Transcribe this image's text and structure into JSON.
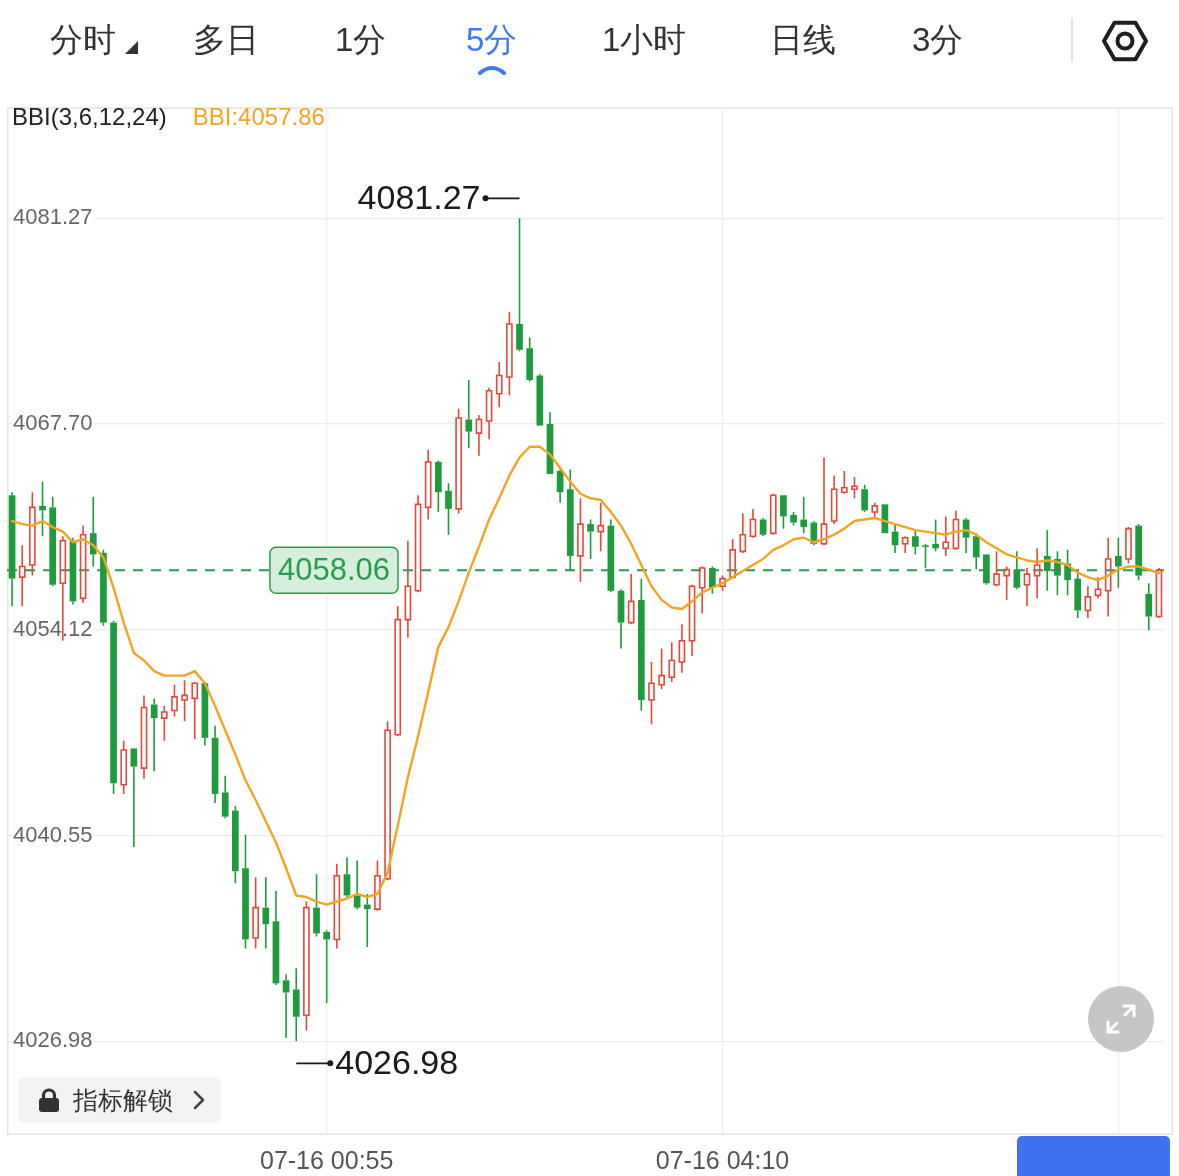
{
  "chart_data": {
    "type": "candlestick",
    "legend_title": "BBI(3,6,12,24)",
    "categories": [
      null,
      null,
      null,
      null,
      null,
      null,
      null,
      null,
      null,
      null,
      null,
      null,
      null,
      null,
      null,
      null,
      null,
      null,
      null,
      null,
      null,
      null,
      null,
      null,
      null,
      null,
      null,
      null,
      null,
      null,
      null,
      "07-16 00:55",
      null,
      null,
      null,
      null,
      null,
      null,
      null,
      null,
      null,
      null,
      null,
      null,
      null,
      null,
      null,
      null,
      null,
      null,
      null,
      null,
      null,
      null,
      null,
      null,
      null,
      null,
      null,
      null,
      null,
      null,
      null,
      null,
      null,
      null,
      null,
      null,
      null,
      null,
      "07-16 04:10",
      null,
      null,
      null,
      null,
      null,
      null,
      null,
      null,
      null,
      null,
      null,
      null,
      null,
      null,
      null,
      null,
      null,
      null,
      null,
      null,
      null,
      null,
      null,
      null,
      null,
      null,
      null,
      null,
      null,
      null,
      null,
      null,
      null,
      null,
      null,
      null,
      null,
      null,
      null,
      null,
      null,
      null,
      null
    ],
    "ohlc": [
      [
        4063.0,
        4063.2,
        4055.7,
        4057.5
      ],
      [
        4057.6,
        4059.7,
        4055.7,
        4058.3
      ],
      [
        4058.4,
        4063.2,
        4057.7,
        4062.2
      ],
      [
        4062.3,
        4063.9,
        4060.3,
        4062.0
      ],
      [
        4062.2,
        4062.9,
        4057.0,
        4057.1
      ],
      [
        4057.2,
        4060.3,
        4053.4,
        4060.0
      ],
      [
        4060.0,
        4060.2,
        4055.8,
        4056.0
      ],
      [
        4056.2,
        4061.0,
        4055.9,
        4060.4
      ],
      [
        4060.5,
        4062.9,
        4058.3,
        4059.1
      ],
      [
        4059.2,
        4059.4,
        4054.4,
        4054.6
      ],
      [
        4054.6,
        4054.7,
        4043.3,
        4044.0
      ],
      [
        4043.9,
        4046.8,
        4043.3,
        4046.2
      ],
      [
        4046.3,
        4046.3,
        4039.8,
        4045.1
      ],
      [
        4045.0,
        4049.8,
        4044.3,
        4049.0
      ],
      [
        4049.2,
        4049.6,
        4044.8,
        4048.3
      ],
      [
        4048.3,
        4049.1,
        4046.8,
        4048.7
      ],
      [
        4048.8,
        4050.5,
        4048.4,
        4049.7
      ],
      [
        4049.5,
        4050.8,
        4048.1,
        4049.8
      ],
      [
        4049.6,
        4050.7,
        4046.9,
        4050.6
      ],
      [
        4050.6,
        4050.7,
        4046.5,
        4047.0
      ],
      [
        4047.0,
        4047.8,
        4042.7,
        4043.3
      ],
      [
        4043.4,
        4044.5,
        4041.7,
        4041.8
      ],
      [
        4042.2,
        4042.5,
        4037.4,
        4038.2
      ],
      [
        4038.4,
        4040.6,
        4033.1,
        4033.7
      ],
      [
        4033.8,
        4037.8,
        4033.1,
        4035.8
      ],
      [
        4035.8,
        4037.8,
        4033.1,
        4034.7
      ],
      [
        4034.9,
        4036.9,
        4030.7,
        4030.8
      ],
      [
        4031.0,
        4031.4,
        4027.2,
        4030.2
      ],
      [
        4030.4,
        4031.8,
        4026.98,
        4028.6
      ],
      [
        4028.7,
        4036.2,
        4027.7,
        4035.8
      ],
      [
        4035.8,
        4038.0,
        4033.9,
        4034.1
      ],
      [
        4034.2,
        4034.3,
        4029.5,
        4033.7
      ],
      [
        4033.7,
        4038.7,
        4033.1,
        4037.9
      ],
      [
        4038.0,
        4039.1,
        4036.5,
        4036.6
      ],
      [
        4036.6,
        4038.9,
        4035.7,
        4035.8
      ],
      [
        4036.0,
        4036.7,
        4033.2,
        4035.7
      ],
      [
        4035.7,
        4038.9,
        4035.6,
        4037.9
      ],
      [
        4037.7,
        4048.1,
        4037.6,
        4047.5
      ],
      [
        4047.2,
        4055.7,
        4047.1,
        4054.8
      ],
      [
        4054.8,
        4060.0,
        4053.6,
        4057.0
      ],
      [
        4056.7,
        4063.0,
        4056.6,
        4062.4
      ],
      [
        4062.2,
        4066.0,
        4061.4,
        4065.2
      ],
      [
        4065.2,
        4065.3,
        4061.9,
        4063.2
      ],
      [
        4063.3,
        4063.8,
        4060.4,
        4062.1
      ],
      [
        4062.1,
        4068.7,
        4061.8,
        4068.1
      ],
      [
        4068.0,
        4070.6,
        4066.1,
        4067.2
      ],
      [
        4067.1,
        4068.3,
        4065.6,
        4068.0
      ],
      [
        4067.9,
        4070.1,
        4066.7,
        4069.9
      ],
      [
        4069.7,
        4071.8,
        4068.8,
        4070.9
      ],
      [
        4070.8,
        4075.1,
        4069.6,
        4074.3
      ],
      [
        4074.3,
        4081.27,
        4072.5,
        4072.6
      ],
      [
        4072.7,
        4073.4,
        4070.5,
        4070.6
      ],
      [
        4070.9,
        4071.0,
        4067.6,
        4067.6
      ],
      [
        4067.7,
        4068.5,
        4064.4,
        4064.4
      ],
      [
        4064.6,
        4064.7,
        4062.5,
        4063.2
      ],
      [
        4063.4,
        4064.7,
        4058.0,
        4059.0
      ],
      [
        4059.0,
        4062.8,
        4057.3,
        4061.1
      ],
      [
        4061.1,
        4061.4,
        4058.8,
        4060.6
      ],
      [
        4060.6,
        4062.5,
        4059.3,
        4061.0
      ],
      [
        4061.0,
        4061.4,
        4056.6,
        4056.7
      ],
      [
        4056.7,
        4056.8,
        4052.9,
        4054.6
      ],
      [
        4054.6,
        4057.8,
        4054.5,
        4056.0
      ],
      [
        4056.1,
        4057.5,
        4048.8,
        4049.5
      ],
      [
        4049.5,
        4052.0,
        4047.9,
        4050.6
      ],
      [
        4050.5,
        4052.9,
        4050.2,
        4051.1
      ],
      [
        4051.0,
        4053.3,
        4050.7,
        4052.1
      ],
      [
        4052.0,
        4054.5,
        4051.3,
        4053.4
      ],
      [
        4053.4,
        4057.1,
        4052.4,
        4057.0
      ],
      [
        4056.9,
        4058.3,
        4055.2,
        4058.2
      ],
      [
        4058.2,
        4058.3,
        4056.5,
        4056.9
      ],
      [
        4057.0,
        4057.7,
        4056.7,
        4057.5
      ],
      [
        4057.6,
        4060.1,
        4057.5,
        4059.4
      ],
      [
        4059.3,
        4061.8,
        4059.2,
        4060.4
      ],
      [
        4060.3,
        4062.1,
        4060.2,
        4061.4
      ],
      [
        4061.4,
        4061.5,
        4060.3,
        4060.4
      ],
      [
        4060.5,
        4063.1,
        4060.4,
        4063.0
      ],
      [
        4063.0,
        4063.0,
        4060.8,
        4061.6
      ],
      [
        4061.7,
        4061.9,
        4061.0,
        4061.2
      ],
      [
        4061.4,
        4062.9,
        4060.5,
        4060.9
      ],
      [
        4061.2,
        4061.3,
        4059.7,
        4059.8
      ],
      [
        4059.8,
        4065.5,
        4059.7,
        4061.1
      ],
      [
        4061.3,
        4064.3,
        4061.1,
        4063.4
      ],
      [
        4063.2,
        4064.6,
        4063.1,
        4063.5
      ],
      [
        4063.4,
        4064.2,
        4062.8,
        4063.6
      ],
      [
        4063.4,
        4063.7,
        4061.9,
        4062.0
      ],
      [
        4061.9,
        4062.5,
        4061.5,
        4062.3
      ],
      [
        4062.4,
        4062.4,
        4060.5,
        4060.5
      ],
      [
        4060.6,
        4061.1,
        4059.2,
        4059.7
      ],
      [
        4059.8,
        4060.3,
        4059.2,
        4060.2
      ],
      [
        4060.3,
        4060.7,
        4059.1,
        4059.6
      ],
      [
        4059.7,
        4059.8,
        4058.2,
        4059.6
      ],
      [
        4059.8,
        4061.4,
        4059.3,
        4059.5
      ],
      [
        4059.5,
        4061.6,
        4059.0,
        4059.9
      ],
      [
        4059.5,
        4062.0,
        4059.4,
        4061.4
      ],
      [
        4061.4,
        4061.5,
        4059.2,
        4060.2
      ],
      [
        4060.3,
        4060.5,
        4058.1,
        4058.9
      ],
      [
        4059.1,
        4059.1,
        4057.1,
        4057.2
      ],
      [
        4057.1,
        4059.3,
        4057.0,
        4057.8
      ],
      [
        4057.7,
        4058.3,
        4056.1,
        4058.1
      ],
      [
        4058.1,
        4059.3,
        4056.8,
        4056.9
      ],
      [
        4057.1,
        4058.2,
        4055.7,
        4057.8
      ],
      [
        4057.7,
        4059.5,
        4056.2,
        4058.4
      ],
      [
        4059.0,
        4060.7,
        4056.7,
        4058.0
      ],
      [
        4058.8,
        4059.3,
        4056.4,
        4057.7
      ],
      [
        4058.5,
        4059.4,
        4056.4,
        4057.4
      ],
      [
        4057.5,
        4058.0,
        4054.9,
        4055.4
      ],
      [
        4055.4,
        4057.0,
        4054.9,
        4056.3
      ],
      [
        4056.4,
        4057.6,
        4056.2,
        4056.8
      ],
      [
        4056.7,
        4060.2,
        4055.0,
        4058.8
      ],
      [
        4059.0,
        4060.2,
        4056.9,
        4058.3
      ],
      [
        4058.8,
        4060.9,
        4058.5,
        4060.8
      ],
      [
        4061.0,
        4061.1,
        4057.4,
        4057.7
      ],
      [
        4056.5,
        4057.2,
        4054.1,
        4055.0
      ],
      [
        4055.0,
        4058.2,
        4054.9,
        4058.06
      ]
    ],
    "colors": [
      "#1e9b3c",
      "#e8483b",
      "#e8483b",
      "#1e9b3c",
      "#1e9b3c",
      "#e8483b",
      "#1e9b3c",
      "#e8483b",
      "#1e9b3c",
      "#1e9b3c",
      "#1e9b3c",
      "#e8483b",
      "#1e9b3c",
      "#e8483b",
      "#1e9b3c",
      "#e8483b",
      "#e8483b",
      "#e8483b",
      "#e8483b",
      "#1e9b3c",
      "#1e9b3c",
      "#1e9b3c",
      "#1e9b3c",
      "#1e9b3c",
      "#e8483b",
      "#1e9b3c",
      "#1e9b3c",
      "#1e9b3c",
      "#1e9b3c",
      "#e8483b",
      "#1e9b3c",
      "#1e9b3c",
      "#e8483b",
      "#1e9b3c",
      "#1e9b3c",
      "#1e9b3c",
      "#e8483b",
      "#e8483b",
      "#e8483b",
      "#e8483b",
      "#e8483b",
      "#e8483b",
      "#1e9b3c",
      "#1e9b3c",
      "#e8483b",
      "#1e9b3c",
      "#e8483b",
      "#e8483b",
      "#e8483b",
      "#e8483b",
      "#1e9b3c",
      "#1e9b3c",
      "#1e9b3c",
      "#1e9b3c",
      "#1e9b3c",
      "#1e9b3c",
      "#e8483b",
      "#1e9b3c",
      "#e8483b",
      "#1e9b3c",
      "#1e9b3c",
      "#e8483b",
      "#1e9b3c",
      "#e8483b",
      "#e8483b",
      "#e8483b",
      "#e8483b",
      "#e8483b",
      "#e8483b",
      "#1e9b3c",
      "#e8483b",
      "#e8483b",
      "#e8483b",
      "#e8483b",
      "#1e9b3c",
      "#e8483b",
      "#1e9b3c",
      "#1e9b3c",
      "#1e9b3c",
      "#1e9b3c",
      "#e8483b",
      "#e8483b",
      "#e8483b",
      "#e8483b",
      "#1e9b3c",
      "#e8483b",
      "#1e9b3c",
      "#1e9b3c",
      "#e8483b",
      "#1e9b3c",
      "#1e9b3c",
      "#1e9b3c",
      "#e8483b",
      "#e8483b",
      "#1e9b3c",
      "#1e9b3c",
      "#1e9b3c",
      "#e8483b",
      "#e8483b",
      "#1e9b3c",
      "#e8483b",
      "#e8483b",
      "#1e9b3c",
      "#1e9b3c",
      "#1e9b3c",
      "#1e9b3c",
      "#e8483b",
      "#e8483b",
      "#e8483b",
      "#1e9b3c",
      "#e8483b",
      "#1e9b3c",
      "#1e9b3c",
      "#e8483b"
    ],
    "series": [
      {
        "type": "line",
        "name": "BBI:4057.86",
        "color": "#f2a523",
        "values": [
          4061.3,
          4061.1,
          4061.0,
          4061.3,
          4060.9,
          4060.6,
          4059.9,
          4060.1,
          4059.7,
          4058.9,
          4056.9,
          4054.6,
          4052.6,
          4052.1,
          4051.4,
          4051.1,
          4051.1,
          4051.1,
          4051.4,
          4050.6,
          4049.1,
          4047.5,
          4045.9,
          4044.2,
          4042.9,
          4041.5,
          4040.1,
          4038.4,
          4036.6,
          4036.5,
          4036.2,
          4036.0,
          4036.2,
          4036.4,
          4036.7,
          4036.5,
          4036.7,
          4038.1,
          4041.2,
          4044.4,
          4047.1,
          4050.0,
          4053.0,
          4054.3,
          4056.0,
          4057.9,
          4059.6,
          4061.4,
          4062.8,
          4064.3,
          4065.5,
          4066.2,
          4066.2,
          4065.7,
          4064.8,
          4063.9,
          4063.1,
          4062.8,
          4062.7,
          4061.9,
          4061.0,
          4059.8,
          4058.4,
          4057.0,
          4056.1,
          4055.6,
          4055.5,
          4056.0,
          4056.6,
          4056.9,
          4057.2,
          4057.6,
          4058.0,
          4058.4,
          4058.8,
          4059.4,
          4059.7,
          4060.1,
          4060.2,
          4059.9,
          4060.1,
          4060.4,
          4060.8,
          4061.3,
          4061.4,
          4061.5,
          4061.3,
          4061.1,
          4060.9,
          4060.7,
          4060.6,
          4060.5,
          4060.4,
          4060.6,
          4060.7,
          4060.4,
          4059.9,
          4059.5,
          4059.1,
          4058.9,
          4058.7,
          4058.6,
          4058.7,
          4058.6,
          4058.4,
          4057.9,
          4057.6,
          4057.4,
          4057.7,
          4058.1,
          4058.3,
          4058.3,
          4058.1,
          4057.86
        ]
      }
    ],
    "ylim": [
      4020.8,
      4088.6
    ],
    "yticks": [
      4026.98,
      4040.55,
      4054.12,
      {
        "value": 4067.7,
        "label": "4067.70"
      },
      4081.27
    ],
    "grid": true,
    "legend": "top left",
    "ref_lines": [
      {
        "axis": "y",
        "value": 4058.06,
        "label": "4058.06",
        "color": "#2a9d4c",
        "line_style": "dashed"
      }
    ],
    "annotations": [
      "分时",
      "多日",
      "1分",
      "5分",
      "1小时",
      "日线",
      "3分",
      "4081.27",
      "4026.98",
      "指标解锁"
    ]
  }
}
